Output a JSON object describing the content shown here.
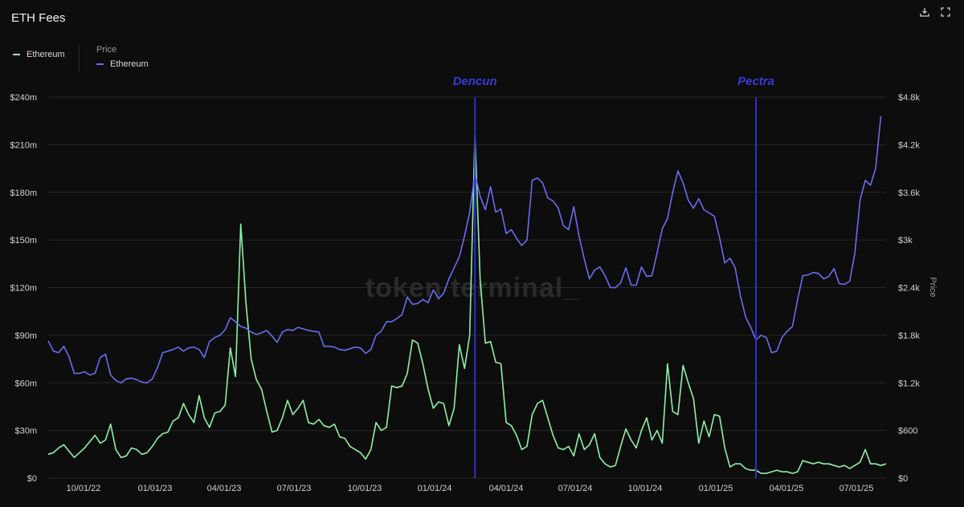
{
  "header": {
    "title": "ETH Fees"
  },
  "toolbar": {
    "download_icon": "download-icon",
    "expand_icon": "expand-icon"
  },
  "legend": {
    "left": {
      "series": "Ethereum",
      "color": "#8ff0a8"
    },
    "right": {
      "heading": "Price",
      "series": "Ethereum",
      "color": "#6a6cf0"
    }
  },
  "watermark": "token terminal_",
  "colors": {
    "fees": "#8ff0a8",
    "price": "#6a6cf0",
    "events": "#2d2dd0",
    "grid": "#262626"
  },
  "chart_data": {
    "type": "line",
    "x_ticks": [
      "10/01/22",
      "01/01/23",
      "04/01/23",
      "07/01/23",
      "10/01/23",
      "01/01/24",
      "04/01/24",
      "07/01/24",
      "10/01/24",
      "01/01/25",
      "04/01/25",
      "07/01/25"
    ],
    "y_left": {
      "ticks": [
        "$0",
        "$30m",
        "$60m",
        "$90m",
        "$120m",
        "$150m",
        "$180m",
        "$210m",
        "$240m"
      ],
      "ylim": [
        0,
        240
      ],
      "unit": "m"
    },
    "y_right": {
      "label": "Price",
      "ticks": [
        "$0",
        "$600",
        "$1.2k",
        "$1.8k",
        "$2.4k",
        "$3k",
        "$3.6k",
        "$4.2k",
        "$4.8k"
      ],
      "ylim": [
        0,
        4800
      ]
    },
    "grid": true,
    "annotations": [
      {
        "label": "Dencun",
        "x_week": 82
      },
      {
        "label": "Pectra",
        "x_week": 136
      }
    ],
    "series": [
      {
        "name": "Ethereum",
        "axis": "left",
        "values": [
          15,
          16,
          19,
          21,
          17,
          13,
          16,
          19,
          23,
          27,
          22,
          24,
          34,
          18,
          13,
          14,
          19,
          18,
          15,
          16,
          20,
          25,
          28,
          29,
          36,
          38,
          47,
          40,
          35,
          52,
          38,
          32,
          41,
          42,
          46,
          82,
          64,
          160,
          110,
          75,
          62,
          56,
          42,
          29,
          30,
          38,
          49,
          40,
          44,
          49,
          35,
          34,
          37,
          33,
          32,
          34,
          26,
          25,
          20,
          18,
          16,
          12,
          18,
          35,
          30,
          32,
          58,
          57,
          58,
          66,
          87,
          85,
          72,
          56,
          44,
          48,
          47,
          33,
          44,
          84,
          69,
          90,
          217,
          125,
          85,
          86,
          73,
          72,
          35,
          33,
          27,
          18,
          20,
          40,
          47,
          49,
          38,
          27,
          19,
          18,
          20,
          14,
          28,
          18,
          21,
          28,
          13,
          9,
          7,
          8,
          20,
          31,
          24,
          19,
          30,
          38,
          24,
          30,
          22,
          72,
          42,
          40,
          71,
          60,
          50,
          22,
          36,
          26,
          40,
          39,
          19,
          7,
          9,
          9,
          6,
          5,
          5,
          3,
          3,
          4,
          5,
          4,
          4,
          3,
          4,
          11,
          10,
          9,
          10,
          9,
          9,
          8,
          7,
          8,
          6,
          8,
          10,
          18,
          9,
          9,
          8,
          9
        ]
      },
      {
        "name": "Ethereum",
        "axis": "right",
        "values": [
          1730,
          1600,
          1580,
          1660,
          1530,
          1320,
          1320,
          1340,
          1300,
          1320,
          1520,
          1560,
          1300,
          1230,
          1200,
          1250,
          1260,
          1240,
          1210,
          1200,
          1250,
          1390,
          1580,
          1600,
          1620,
          1650,
          1600,
          1640,
          1650,
          1620,
          1520,
          1720,
          1770,
          1800,
          1870,
          2020,
          1970,
          1910,
          1890,
          1840,
          1810,
          1830,
          1860,
          1790,
          1710,
          1840,
          1870,
          1860,
          1900,
          1880,
          1860,
          1850,
          1840,
          1660,
          1660,
          1650,
          1620,
          1610,
          1630,
          1650,
          1640,
          1570,
          1620,
          1800,
          1850,
          1970,
          1970,
          2010,
          2060,
          2280,
          2190,
          2200,
          2250,
          2210,
          2370,
          2260,
          2330,
          2510,
          2650,
          2790,
          3050,
          3350,
          3830,
          3550,
          3380,
          3670,
          3350,
          3390,
          3080,
          3130,
          3020,
          2930,
          3000,
          3750,
          3780,
          3720,
          3530,
          3490,
          3400,
          3180,
          3130,
          3420,
          3050,
          2760,
          2510,
          2620,
          2660,
          2550,
          2400,
          2400,
          2460,
          2650,
          2430,
          2430,
          2660,
          2540,
          2550,
          2840,
          3140,
          3270,
          3600,
          3870,
          3720,
          3500,
          3400,
          3520,
          3380,
          3340,
          3300,
          3030,
          2710,
          2770,
          2650,
          2300,
          2030,
          1900,
          1740,
          1800,
          1770,
          1580,
          1600,
          1770,
          1850,
          1910,
          2250,
          2550,
          2560,
          2590,
          2580,
          2510,
          2540,
          2640,
          2450,
          2440,
          2480,
          2830,
          3500,
          3750,
          3690,
          3900,
          4560
        ]
      }
    ]
  }
}
